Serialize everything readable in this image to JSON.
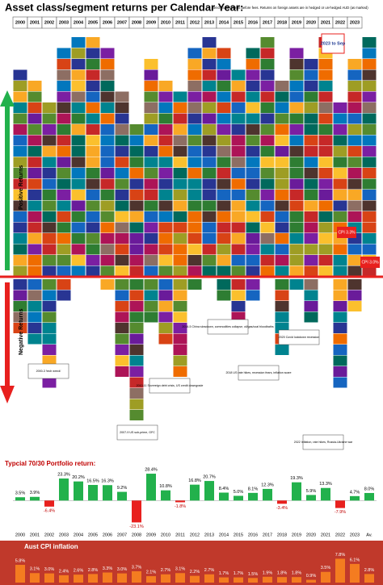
{
  "header": {
    "title": "Asset class/segment returns per Calendar Year:",
    "subtitle": "Benchmark returns before fees. Returns on foreign assets are in hedged or un-hedged AUD (as marked)"
  },
  "labels": {
    "positive": "Positive Returns",
    "negative": "Negative Returns",
    "ytd": "2023 to Sep",
    "cpi_a": "CPI 3.3%",
    "cpi_b": "CPI 3.0%"
  },
  "annotations": [
    "2000-3 'tech wreck'",
    "2007-9 US sub-prime, GFC",
    "2010-11 Sovereign debt crisis, US credit downgrade",
    "2014-5 China slowdown, commodities collapse, oil/gas/coal bloodbaths",
    "2018 US rate hikes, recession fears, inflation scare",
    "2020 Covid lockdown recession",
    "2022 Inflation, rate hikes, Russia-Ukraine war"
  ],
  "chart_data": [
    {
      "type": "bar",
      "title": "Typcial 70/30 Portfolio return:",
      "categories": [
        "2000",
        "2001",
        "2002",
        "2003",
        "2004",
        "2005",
        "2006",
        "2007",
        "2008",
        "2009",
        "2010",
        "2011",
        "2012",
        "2013",
        "2014",
        "2015",
        "2016",
        "2017",
        "2018",
        "2019",
        "2020",
        "2021",
        "2022",
        "2023",
        "Av."
      ],
      "values": [
        3.5,
        3.9,
        -6.4,
        23.3,
        20.2,
        16.5,
        16.3,
        9.2,
        -23.1,
        28.4,
        10.8,
        -1.8,
        16.8,
        20.7,
        8.4,
        5.0,
        8.1,
        12.3,
        -3.4,
        19.3,
        5.9,
        13.3,
        -7.9,
        4.7,
        8.0
      ],
      "value_labels": [
        "3.5%",
        "3.9%",
        "-6.4%",
        "23.3%",
        "20.2%",
        "16.5%",
        "16.3%",
        "9.2%",
        "-23.1%",
        "28.4%",
        "10.8%",
        "-1.8%",
        "16.8%",
        "20.7%",
        "8.4%",
        "5.0%",
        "8.1%",
        "12.3%",
        "-3.4%",
        "19.3%",
        "5.9%",
        "13.3%",
        "-7.9%",
        "4.7%",
        "8.0%"
      ],
      "color": "#22b14c",
      "negative_color": "#e8201e",
      "ylim": [
        -27,
        31
      ]
    },
    {
      "type": "bar",
      "title": "Aust CPI inflation",
      "categories": [
        "2000",
        "2001",
        "2002",
        "2003",
        "2004",
        "2005",
        "2006",
        "2007",
        "2008",
        "2009",
        "2010",
        "2011",
        "2012",
        "2013",
        "2014",
        "2015",
        "2016",
        "2017",
        "2018",
        "2019",
        "2020",
        "2021",
        "2022",
        "2023",
        "Av."
      ],
      "values": [
        5.8,
        3.1,
        3.0,
        2.4,
        2.6,
        2.8,
        3.3,
        3.0,
        3.7,
        2.1,
        2.7,
        3.1,
        2.2,
        2.7,
        1.7,
        1.7,
        1.5,
        1.9,
        1.8,
        1.8,
        0.9,
        3.5,
        7.8,
        6.1,
        2.8
      ],
      "value_labels": [
        "5.8%",
        "3.1%",
        "3.0%",
        "2.4%",
        "2.6%",
        "2.8%",
        "3.3%",
        "3.0%",
        "3.7%",
        "2.1%",
        "2.7%",
        "3.1%",
        "2.2%",
        "2.7%",
        "1.7%",
        "1.7%",
        "1.5%",
        "1.9%",
        "1.8%",
        "1.8%",
        "0.9%",
        "3.5%",
        "7.8%",
        "6.1%",
        "2.8%"
      ],
      "color": "#f47c20",
      "ylim": [
        0,
        9.5
      ]
    }
  ]
}
